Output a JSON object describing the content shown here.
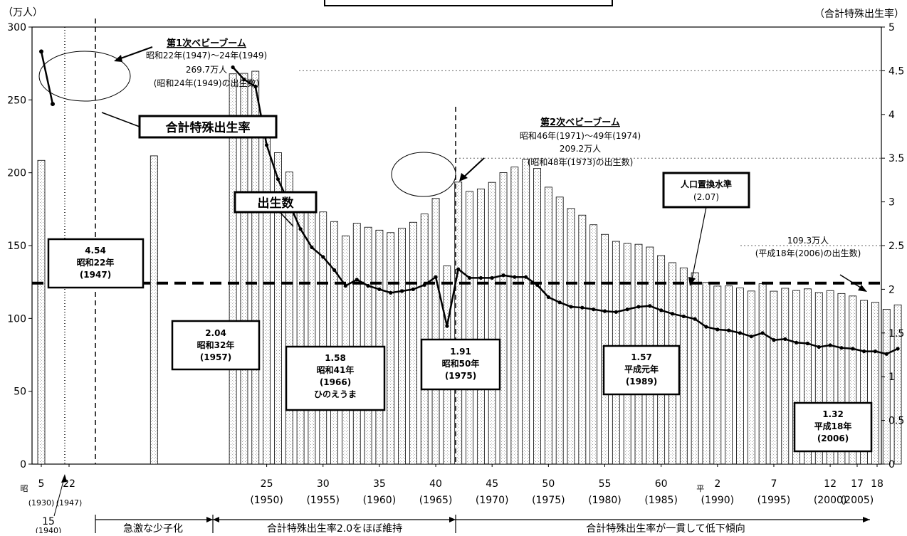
{
  "chart_data": {
    "type": "bar+line",
    "left_axis_unit": "（万人）",
    "right_axis_unit": "（合計特殊出生率）",
    "left_ticks": [
      "0",
      "50",
      "100",
      "150",
      "200",
      "250",
      "300"
    ],
    "left_ylim": [
      0,
      300
    ],
    "right_ticks": [
      "0",
      "0.5",
      "1",
      "1.5",
      "2",
      "2.5",
      "3",
      "3.5",
      "4",
      "4.5",
      "5"
    ],
    "right_ylim": [
      0,
      5
    ],
    "x_range": [
      1930,
      2006
    ],
    "births_years": [
      1930,
      1940,
      1947,
      1948,
      1949,
      1950,
      1951,
      1952,
      1953,
      1954,
      1955,
      1956,
      1957,
      1958,
      1959,
      1960,
      1961,
      1962,
      1963,
      1964,
      1965,
      1966,
      1967,
      1968,
      1969,
      1970,
      1971,
      1972,
      1973,
      1974,
      1975,
      1976,
      1977,
      1978,
      1979,
      1980,
      1981,
      1982,
      1983,
      1984,
      1985,
      1986,
      1987,
      1988,
      1989,
      1990,
      1991,
      1992,
      1993,
      1994,
      1995,
      1996,
      1997,
      1998,
      1999,
      2000,
      2001,
      2002,
      2003,
      2004,
      2005,
      2006
    ],
    "births_values": [
      208.5,
      211.6,
      267.9,
      268.2,
      269.7,
      233.8,
      213.8,
      200.5,
      186.8,
      177.0,
      173.1,
      166.5,
      156.7,
      165.3,
      162.6,
      160.6,
      158.9,
      161.9,
      166.0,
      171.7,
      182.4,
      136.1,
      193.6,
      187.2,
      188.9,
      193.4,
      200.1,
      203.9,
      209.2,
      203.0,
      190.1,
      183.3,
      175.5,
      170.9,
      164.3,
      157.7,
      152.9,
      151.5,
      150.9,
      149.0,
      143.2,
      138.3,
      134.7,
      131.4,
      124.7,
      122.2,
      122.3,
      120.9,
      118.8,
      123.8,
      118.7,
      120.7,
      119.2,
      120.3,
      117.8,
      119.1,
      117.1,
      115.4,
      112.4,
      111.1,
      106.3,
      109.3
    ],
    "series": [
      {
        "name": "出生数",
        "axis": "left",
        "kind": "bar",
        "x_key": "births_years",
        "values_key": "births_values"
      },
      {
        "name": "合計特殊出生率",
        "axis": "right",
        "kind": "line",
        "early_points": [
          [
            1930,
            4.72
          ],
          [
            1940,
            4.12
          ]
        ],
        "points": [
          [
            1947,
            4.54
          ],
          [
            1948,
            4.4
          ],
          [
            1949,
            4.32
          ],
          [
            1950,
            3.65
          ],
          [
            1951,
            3.26
          ],
          [
            1952,
            2.98
          ],
          [
            1953,
            2.69
          ],
          [
            1954,
            2.48
          ],
          [
            1955,
            2.37
          ],
          [
            1956,
            2.22
          ],
          [
            1957,
            2.04
          ],
          [
            1958,
            2.11
          ],
          [
            1959,
            2.04
          ],
          [
            1960,
            2.0
          ],
          [
            1961,
            1.96
          ],
          [
            1962,
            1.98
          ],
          [
            1963,
            2.0
          ],
          [
            1964,
            2.05
          ],
          [
            1965,
            2.14
          ],
          [
            1966,
            1.58
          ],
          [
            1967,
            2.23
          ],
          [
            1968,
            2.13
          ],
          [
            1969,
            2.13
          ],
          [
            1970,
            2.13
          ],
          [
            1971,
            2.16
          ],
          [
            1972,
            2.14
          ],
          [
            1973,
            2.14
          ],
          [
            1974,
            2.05
          ],
          [
            1975,
            1.91
          ],
          [
            1976,
            1.85
          ],
          [
            1977,
            1.8
          ],
          [
            1978,
            1.79
          ],
          [
            1979,
            1.77
          ],
          [
            1980,
            1.75
          ],
          [
            1981,
            1.74
          ],
          [
            1982,
            1.77
          ],
          [
            1983,
            1.8
          ],
          [
            1984,
            1.81
          ],
          [
            1985,
            1.76
          ],
          [
            1986,
            1.72
          ],
          [
            1987,
            1.69
          ],
          [
            1988,
            1.66
          ],
          [
            1989,
            1.57
          ],
          [
            1990,
            1.54
          ],
          [
            1991,
            1.53
          ],
          [
            1992,
            1.5
          ],
          [
            1993,
            1.46
          ],
          [
            1994,
            1.5
          ],
          [
            1995,
            1.42
          ],
          [
            1996,
            1.43
          ],
          [
            1997,
            1.39
          ],
          [
            1998,
            1.38
          ],
          [
            1999,
            1.34
          ],
          [
            2000,
            1.36
          ],
          [
            2001,
            1.33
          ],
          [
            2002,
            1.32
          ],
          [
            2003,
            1.29
          ],
          [
            2004,
            1.29
          ],
          [
            2005,
            1.26
          ],
          [
            2006,
            1.32
          ]
        ]
      }
    ],
    "replacement_level": 2.07,
    "grid": "dotted, right axis 2.5 / 3.5 / 4.5",
    "x_tick_labels": [
      {
        "year": 1930,
        "top": "5",
        "bottom": "(1930)",
        "prefix": "昭"
      },
      {
        "year": 1947,
        "top": "22",
        "bottom": "(1947)"
      },
      {
        "year": 1950,
        "top": "25",
        "bottom": "(1950)"
      },
      {
        "year": 1955,
        "top": "30",
        "bottom": "(1955)"
      },
      {
        "year": 1960,
        "top": "35",
        "bottom": "(1960)"
      },
      {
        "year": 1965,
        "top": "40",
        "bottom": "(1965)"
      },
      {
        "year": 1970,
        "top": "45",
        "bottom": "(1970)"
      },
      {
        "year": 1975,
        "top": "50",
        "bottom": "(1975)"
      },
      {
        "year": 1980,
        "top": "55",
        "bottom": "(1980)"
      },
      {
        "year": 1985,
        "top": "60",
        "bottom": "(1985)"
      },
      {
        "year": 1990,
        "top": "2",
        "bottom": "(1990)",
        "prefix": "平"
      },
      {
        "year": 1995,
        "top": "7",
        "bottom": "(1995)"
      },
      {
        "year": 2000,
        "top": "12",
        "bottom": "(2000)"
      },
      {
        "year": 2005,
        "top": "17",
        "bottom": "(2005)"
      },
      {
        "year": 2006,
        "top": "18",
        "bottom": ""
      }
    ],
    "extra_tick": {
      "top": "15",
      "bottom": "(1940)"
    },
    "eras": [
      {
        "label": "急激な少子化"
      },
      {
        "label": "合計特殊出生率2.0をほぼ維持"
      },
      {
        "label": "合計特殊出生率が一貫して低下傾向"
      }
    ],
    "annotations": {
      "boom1_title": "第1次ベビーブーム",
      "boom1_line1": "昭和22年(1947)～24年(1949)",
      "boom1_line2": "269.7万人",
      "boom1_line3": "(昭和24年(1949)の出生数)",
      "boom2_title": "第2次ベビーブーム",
      "boom2_line1": "昭和46年(1971)～49年(1974)",
      "boom2_line2": "209.2万人",
      "boom2_line3": "(昭和48年(1973)の出生数)",
      "tfr_label": "合計特殊出生率",
      "births_label": "出生数",
      "repl_line1": "人口置換水準",
      "repl_line2": "(2.07)",
      "b2006_line1": "109.3万人",
      "b2006_line2": "(平成18年(2006)の出生数)",
      "c1947": [
        "4.54",
        "昭和22年",
        "(1947)"
      ],
      "c1957": [
        "2.04",
        "昭和32年",
        "(1957)"
      ],
      "c1966": [
        "1.58",
        "昭和41年",
        "(1966)",
        "ひのえうま"
      ],
      "c1975": [
        "1.91",
        "昭和50年",
        "(1975)"
      ],
      "c1989": [
        "1.57",
        "平成元年",
        "(1989)"
      ],
      "c2006": [
        "1.32",
        "平成18年",
        "(2006)"
      ]
    }
  }
}
